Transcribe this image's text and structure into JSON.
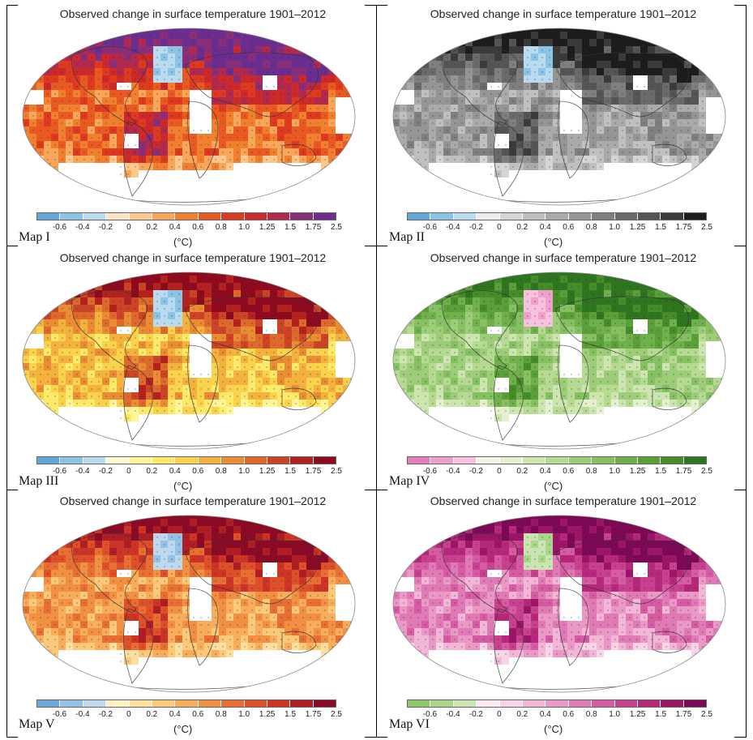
{
  "page_title_repeated": "Observed change in surface temperature 1901–2012",
  "colorbar": {
    "ticks": [
      "-0.6",
      "-0.4",
      "-0.2",
      "0",
      "0.2",
      "0.4",
      "0.6",
      "0.8",
      "1.0",
      "1.25",
      "1.5",
      "1.75",
      "2.5"
    ],
    "unit": "(°C)"
  },
  "panels": [
    {
      "label": "Map I",
      "title": "Observed change in surface temperature 1901–2012",
      "colors": [
        "#5fa8d8",
        "#8cc4e6",
        "#b8dbef",
        "#fde3c5",
        "#fbc890",
        "#f8a659",
        "#f08030",
        "#e85a22",
        "#dd3a1f",
        "#cc2a2a",
        "#b3284d",
        "#8b2e7a",
        "#6b2e8f"
      ]
    },
    {
      "label": "Map II",
      "title": "Observed change in surface temperature 1901–2012",
      "colors": [
        "#5fa8d8",
        "#8cc4e6",
        "#b8dbef",
        "#ececec",
        "#d5d5d5",
        "#c0c0c0",
        "#aaaaaa",
        "#959595",
        "#7f7f7f",
        "#6a6a6a",
        "#555555",
        "#3b3b3b",
        "#1c1c1c"
      ]
    },
    {
      "label": "Map III",
      "title": "Observed change in surface temperature 1901–2012",
      "colors": [
        "#5fa8d8",
        "#8cc4e6",
        "#b8dbef",
        "#fffbd0",
        "#fff59a",
        "#fde96a",
        "#f9d34e",
        "#f3b23e",
        "#e98c33",
        "#dd6a2c",
        "#cc4426",
        "#b3221f",
        "#8e0a1e"
      ]
    },
    {
      "label": "Map IV",
      "title": "Observed change in surface temperature 1901–2012",
      "colors": [
        "#e37fb6",
        "#ee9fca",
        "#f6c2df",
        "#f3f7e8",
        "#e4f0cf",
        "#cde6b0",
        "#b6da92",
        "#9dcd78",
        "#86c063",
        "#6fb04c",
        "#5a9f3a",
        "#468c2b",
        "#2f7520"
      ]
    },
    {
      "label": "Map V",
      "title": "Observed change in surface temperature 1901–2012",
      "colors": [
        "#6fa8d6",
        "#95c1e4",
        "#bdd9ef",
        "#fff0c4",
        "#fde0a0",
        "#fbc97a",
        "#f7ad5b",
        "#f18f42",
        "#e86f33",
        "#dd502a",
        "#cc3525",
        "#b01e25",
        "#8b0a26"
      ]
    },
    {
      "label": "Map VI",
      "title": "Observed change in surface temperature 1901–2012",
      "colors": [
        "#8ec86a",
        "#aad68c",
        "#c8e5b2",
        "#fbe8f2",
        "#f8d4e7",
        "#f2b7d7",
        "#ea98c6",
        "#e07ab5",
        "#d55ca3",
        "#c8418f",
        "#b5287b",
        "#9c1668",
        "#7d0856"
      ]
    }
  ]
}
